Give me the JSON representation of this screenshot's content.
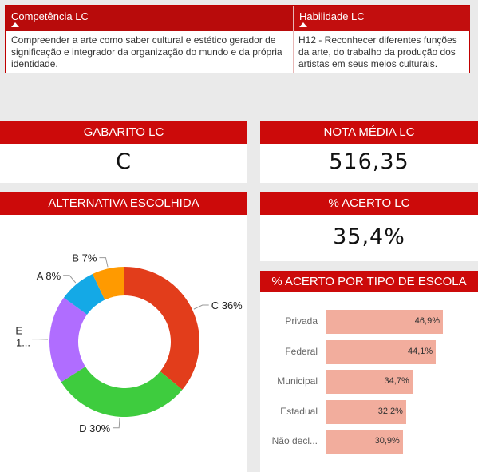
{
  "table": {
    "headers": [
      "Competência LC",
      "Habilidade LC"
    ],
    "row": [
      "Compreender a arte como saber cultural e estético gerador de significação e integrador da organização do mundo e da própria identidade.",
      "H12 - Reconhecer diferentes funções da arte, do trabalho da produção dos artistas em seus meios culturais."
    ]
  },
  "cards": {
    "gabarito": {
      "title": "GABARITO LC",
      "value": "C"
    },
    "nota": {
      "title": "NOTA MÉDIA LC",
      "value": "516,35"
    },
    "acerto": {
      "title": "% ACERTO LC",
      "value": "35,4%"
    }
  },
  "chart_data": [
    {
      "type": "pie",
      "title": "ALTERNATIVA ESCOLHIDA",
      "categories": [
        "C",
        "D",
        "E",
        "A",
        "B"
      ],
      "values": [
        36,
        30,
        19,
        8,
        7
      ],
      "labels": [
        "C 36%",
        "D 30%",
        "E 1...",
        "A 8%",
        "B 7%"
      ],
      "colors": [
        "#e23d1b",
        "#3ecc3e",
        "#b06dff",
        "#14a9e6",
        "#ff9a00"
      ]
    },
    {
      "type": "bar",
      "title": "% ACERTO POR TIPO DE ESCOLA",
      "categories": [
        "Privada",
        "Federal",
        "Municipal",
        "Estadual",
        "Não decl..."
      ],
      "values": [
        46.9,
        44.1,
        34.7,
        32.2,
        30.9
      ],
      "labels": [
        "46,9%",
        "44,1%",
        "34,7%",
        "32,2%",
        "30,9%"
      ],
      "color": "#f2ad9d"
    }
  ]
}
